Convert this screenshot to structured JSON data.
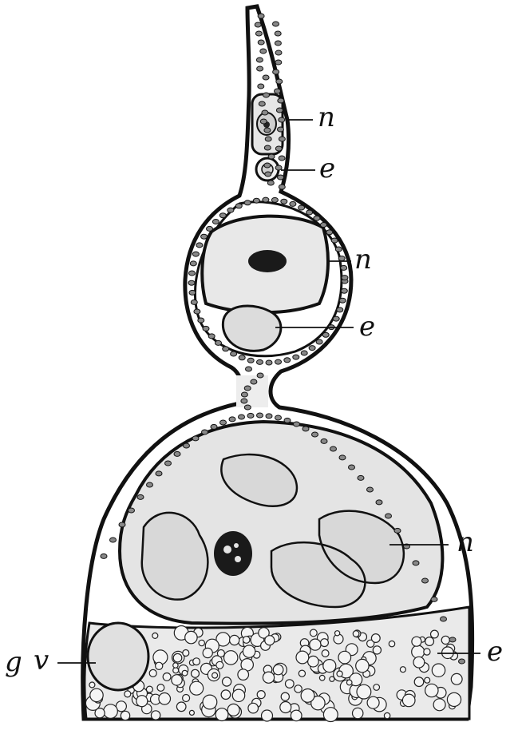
{
  "figure": {
    "labels": {
      "n_top": "n",
      "e_top": "e",
      "n_mid": "n",
      "e_mid": "e",
      "n_bottom": "n",
      "e_bottom": "e",
      "g": "g",
      "v": "v"
    },
    "colors": {
      "ink": "#111111",
      "cytoplasm": "#e9e9e9",
      "nucleus": "#dcdcdc",
      "nucleolus": "#222222",
      "paper": "#ffffff"
    }
  }
}
